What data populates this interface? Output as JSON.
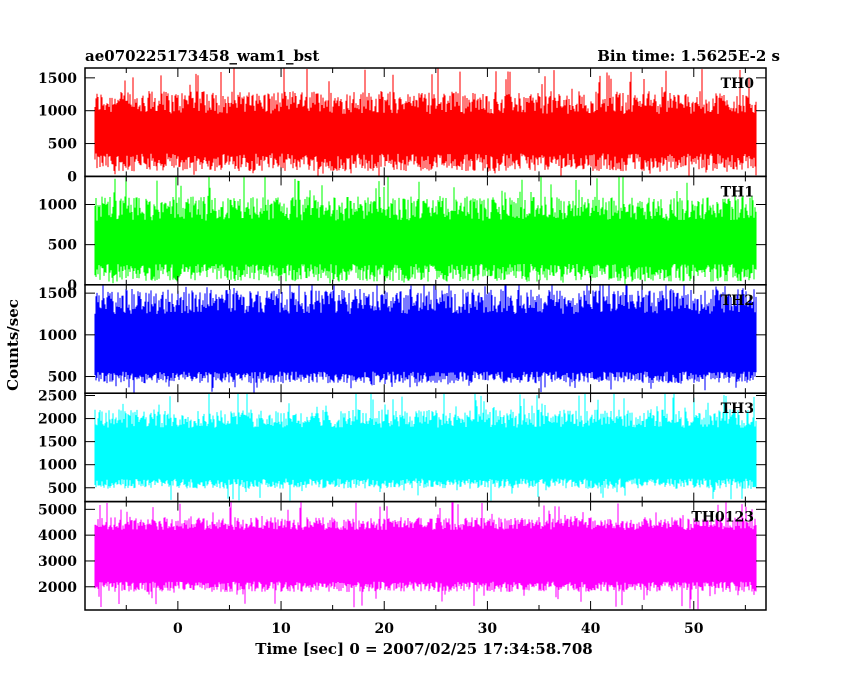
{
  "header": {
    "title": "ae070225173458_wam1_bst",
    "bin_time": "Bin time: 1.5625E-2 s"
  },
  "chart_data": {
    "type": "line",
    "title": "ae070225173458_wam1_bst",
    "xlabel": "Time [sec] 0 = 2007/02/25 17:34:58.708",
    "ylabel": "Counts/sec",
    "xlim": [
      -9,
      57
    ],
    "data_range": [
      -8,
      56
    ],
    "x_ticks": [
      0,
      10,
      20,
      30,
      40,
      50
    ],
    "bin_time": 0.015625,
    "panels": [
      {
        "name": "TH0",
        "color": "#ff0000",
        "ylim": [
          0,
          1650
        ],
        "y_ticks": [
          0,
          500,
          1000,
          1500
        ],
        "baseline_low": [
          80,
          350
        ],
        "baseline_high": [
          950,
          1300
        ],
        "spike_max": 1700
      },
      {
        "name": "TH1",
        "color": "#00ff00",
        "ylim": [
          0,
          1350
        ],
        "y_ticks": [
          0,
          500,
          1000
        ],
        "baseline_low": [
          40,
          260
        ],
        "baseline_high": [
          800,
          1100
        ],
        "spike_max": 1400
      },
      {
        "name": "TH2",
        "color": "#0000ff",
        "ylim": [
          300,
          1600
        ],
        "y_ticks": [
          500,
          1000,
          1500
        ],
        "baseline_low": [
          420,
          560
        ],
        "baseline_high": [
          1250,
          1550
        ],
        "spike_max": 1700
      },
      {
        "name": "TH3",
        "color": "#00ffff",
        "ylim": [
          200,
          2550
        ],
        "y_ticks": [
          500,
          1000,
          1500,
          2000,
          2500
        ],
        "baseline_low": [
          480,
          700
        ],
        "baseline_high": [
          1800,
          2200
        ],
        "spike_max": 2650
      },
      {
        "name": "TH0123",
        "color": "#ff00ff",
        "ylim": [
          1100,
          5300
        ],
        "y_ticks": [
          2000,
          3000,
          4000,
          5000
        ],
        "baseline_low": [
          1800,
          2200
        ],
        "baseline_high": [
          4200,
          4700
        ],
        "spike_max": 5400
      }
    ]
  }
}
